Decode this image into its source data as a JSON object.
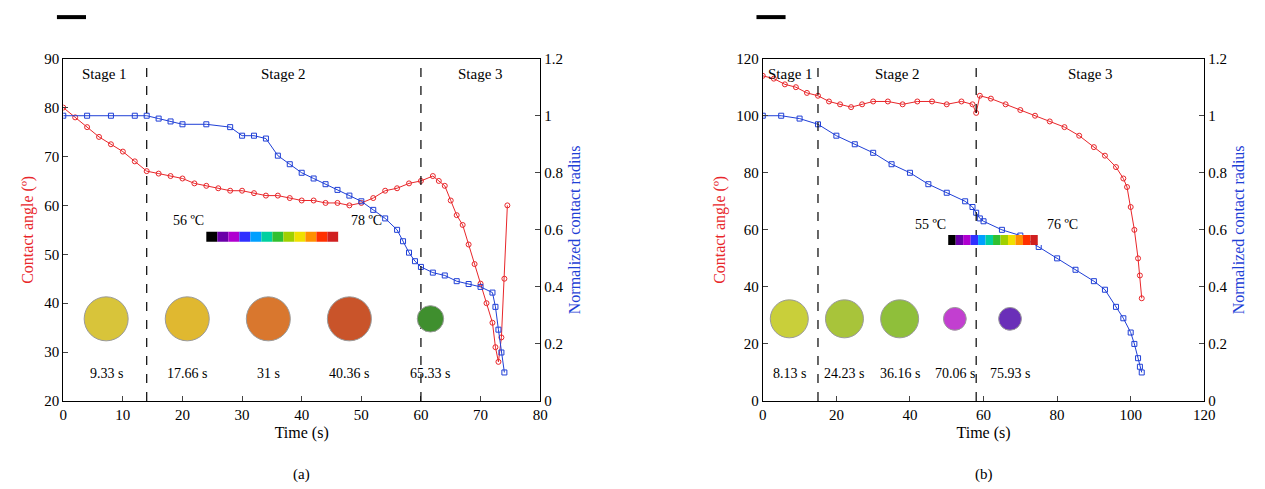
{
  "chart_data": [
    {
      "type": "line",
      "panel_label": "(a)",
      "x_title": "Time (s)",
      "y_title": "Contact angle (º)",
      "y2_title": "Normalized contact radius",
      "xlim": [
        0,
        80
      ],
      "xticks": [
        0,
        10,
        20,
        30,
        40,
        50,
        60,
        70,
        80
      ],
      "ylim": [
        20,
        90
      ],
      "yticks": [
        20,
        30,
        40,
        50,
        60,
        70,
        80,
        90
      ],
      "y2lim": [
        0,
        1.2
      ],
      "y2ticks": [
        0,
        0.2,
        0.4,
        0.6,
        0.8,
        1,
        1.2
      ],
      "stage_labels": [
        "Stage 1",
        "Stage 2",
        "Stage 3"
      ],
      "stage_boundaries": [
        14,
        60
      ],
      "inset_times": [
        "9.33 s",
        "17.66 s",
        "31 s",
        "40.36 s",
        "65.33 s"
      ],
      "colorbar_labels": [
        "56 ºC",
        "78 ºC"
      ],
      "series": [
        {
          "color": "#e8262a",
          "marker": "circle-open",
          "line_style": "solid",
          "x": [
            0,
            2,
            4,
            6,
            8,
            10,
            12,
            14,
            16,
            18,
            20,
            22,
            24,
            26,
            28,
            30,
            32,
            34,
            36,
            38,
            40,
            42,
            44,
            46,
            48,
            50,
            52,
            54,
            56,
            58,
            60,
            62,
            63,
            64,
            65,
            66,
            67,
            68,
            69,
            70,
            71,
            72,
            72.5,
            73,
            73.5,
            74,
            74.5
          ],
          "values": [
            80,
            78,
            76,
            74,
            72.5,
            71,
            69,
            67,
            66.5,
            66,
            65.5,
            64.5,
            64,
            63.5,
            63,
            63,
            62.5,
            62,
            62,
            61.5,
            61,
            61,
            60.5,
            60.5,
            60,
            60.5,
            61.5,
            63,
            63.5,
            64.5,
            65,
            66,
            65,
            64,
            61,
            58,
            56,
            52,
            48,
            44,
            40,
            36,
            31,
            28,
            33,
            45,
            60
          ]
        },
        {
          "axis": "y2",
          "color": "#1f3fd6",
          "marker": "square-open",
          "line_style": "solid",
          "x": [
            0,
            4,
            8,
            12,
            14,
            16,
            18,
            20,
            24,
            28,
            30,
            32,
            34,
            36,
            38,
            40,
            42,
            44,
            46,
            48,
            50,
            52,
            54,
            56,
            57,
            58,
            59,
            60,
            62,
            64,
            66,
            68,
            70,
            72,
            72.5,
            73,
            73.5,
            74
          ],
          "values": [
            1,
            1,
            1,
            1,
            1,
            0.99,
            0.98,
            0.97,
            0.97,
            0.96,
            0.93,
            0.93,
            0.92,
            0.86,
            0.83,
            0.8,
            0.78,
            0.76,
            0.74,
            0.72,
            0.7,
            0.67,
            0.64,
            0.6,
            0.56,
            0.52,
            0.49,
            0.47,
            0.45,
            0.44,
            0.42,
            0.41,
            0.4,
            0.38,
            0.33,
            0.25,
            0.17,
            0.1
          ]
        }
      ]
    },
    {
      "type": "line",
      "panel_label": "(b)",
      "x_title": "Time (s)",
      "y_title": "Contact angle (º)",
      "y2_title": "Normalized contact radius",
      "xlim": [
        0,
        120
      ],
      "xticks": [
        0,
        20,
        40,
        60,
        80,
        100,
        120
      ],
      "ylim": [
        0,
        120
      ],
      "yticks": [
        0,
        20,
        40,
        60,
        80,
        100,
        120
      ],
      "y2lim": [
        0,
        1.2
      ],
      "y2ticks": [
        0,
        0.2,
        0.4,
        0.6,
        0.8,
        1,
        1.2
      ],
      "stage_labels": [
        "Stage 1",
        "Stage 2",
        "Stage 3"
      ],
      "stage_boundaries": [
        15,
        58
      ],
      "inset_times": [
        "8.13 s",
        "24.23 s",
        "36.16 s",
        "70.06 s",
        "75.93 s"
      ],
      "colorbar_labels": [
        "55 ºC",
        "76 ºC"
      ],
      "series": [
        {
          "color": "#e8262a",
          "marker": "circle-open",
          "line_style": "solid",
          "x": [
            0,
            3,
            6,
            9,
            12,
            15,
            18,
            21,
            24,
            27,
            30,
            34,
            38,
            42,
            46,
            50,
            54,
            57,
            58,
            59,
            62,
            66,
            70,
            74,
            78,
            82,
            86,
            90,
            93,
            96,
            98,
            99,
            100,
            101,
            102,
            102.5,
            103
          ],
          "values": [
            114,
            113,
            111,
            110,
            108,
            107,
            105,
            104,
            103,
            104,
            105,
            105,
            104,
            105,
            105,
            104,
            105,
            104,
            101,
            107,
            106,
            104,
            102,
            100,
            98,
            96,
            93,
            89,
            86,
            82,
            78,
            75,
            68,
            60,
            50,
            44,
            36
          ]
        },
        {
          "axis": "y2",
          "color": "#1f3fd6",
          "marker": "square-open",
          "line_style": "solid",
          "x": [
            0,
            5,
            10,
            15,
            20,
            25,
            30,
            35,
            40,
            45,
            50,
            55,
            57,
            58,
            59,
            60,
            65,
            70,
            75,
            80,
            85,
            90,
            93,
            96,
            98,
            100,
            101,
            102,
            102.5,
            103
          ],
          "values": [
            1,
            1,
            0.99,
            0.97,
            0.93,
            0.9,
            0.87,
            0.83,
            0.8,
            0.76,
            0.73,
            0.7,
            0.68,
            0.66,
            0.64,
            0.63,
            0.6,
            0.58,
            0.54,
            0.5,
            0.46,
            0.42,
            0.39,
            0.33,
            0.29,
            0.24,
            0.2,
            0.15,
            0.12,
            0.1
          ]
        }
      ]
    }
  ]
}
